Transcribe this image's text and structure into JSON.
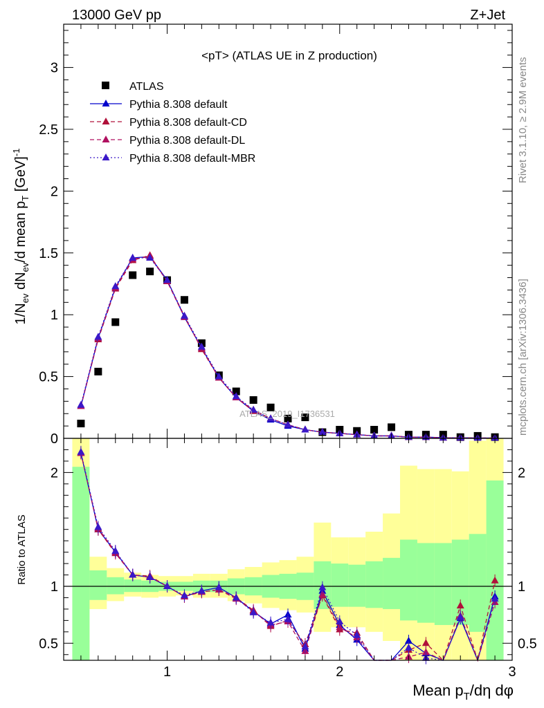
{
  "header": {
    "left": "13000 GeV pp",
    "right": "Z+Jet"
  },
  "side_labels": {
    "rivet": "Rivet 3.1.10, ≥ 2.9M events",
    "mcplots": "mcplots.cern.ch [arXiv:1306.3436]"
  },
  "watermark": "ATLAS_2019_I1736531",
  "colors": {
    "data": "#000000",
    "default": "#0000cc",
    "cd": "#b0103a",
    "dl": "#b01060",
    "mbr": "#3a18c8",
    "band_inner": "#99ff99",
    "band_outer": "#ffff99"
  },
  "chart_data": [
    {
      "type": "scatter",
      "panel": "main",
      "title": "<pT> (ATLAS UE in Z production)",
      "xlabel": "Mean p_T/dη dφ",
      "ylabel": "1/N_ev dN_ev/d mean p_T [GeV]^-1",
      "xlim": [
        0.4,
        3.0
      ],
      "ylim": [
        0,
        3.35
      ],
      "x_ticks": [
        "1",
        "2",
        "3"
      ],
      "y_ticks": [
        "0",
        "0.5",
        "1",
        "1.5",
        "2",
        "2.5",
        "3"
      ],
      "x": [
        0.5,
        0.6,
        0.7,
        0.8,
        0.9,
        1.0,
        1.1,
        1.2,
        1.3,
        1.4,
        1.5,
        1.6,
        1.7,
        1.8,
        1.9,
        2.0,
        2.1,
        2.2,
        2.3,
        2.4,
        2.5,
        2.6,
        2.7,
        2.8,
        2.9
      ],
      "series": [
        {
          "name": "ATLAS",
          "style": "data",
          "values": [
            0.12,
            0.54,
            0.94,
            1.32,
            1.35,
            1.28,
            1.12,
            0.77,
            0.51,
            0.38,
            0.31,
            0.25,
            0.16,
            0.17,
            0.05,
            0.07,
            0.06,
            0.07,
            0.09,
            0.03,
            0.03,
            0.03,
            0.01,
            0.02,
            0.01
          ]
        },
        {
          "name": "Pythia 8.308 default",
          "style": "solid",
          "color": "#0000cc",
          "values": [
            0.26,
            0.81,
            1.22,
            1.46,
            1.47,
            1.28,
            0.98,
            0.73,
            0.49,
            0.33,
            0.22,
            0.15,
            0.1,
            0.07,
            0.05,
            0.04,
            0.03,
            0.02,
            0.02,
            0.01,
            0.01,
            0.005,
            0.005,
            0.003,
            0.003
          ]
        },
        {
          "name": "Pythia 8.308 default-CD",
          "style": "dashed",
          "color": "#b0103a",
          "values": [
            0.26,
            0.8,
            1.21,
            1.44,
            1.48,
            1.27,
            0.99,
            0.72,
            0.49,
            0.33,
            0.22,
            0.16,
            0.11,
            0.07,
            0.05,
            0.04,
            0.03,
            0.02,
            0.02,
            0.01,
            0.01,
            0.005,
            0.005,
            0.003,
            0.003
          ]
        },
        {
          "name": "Pythia 8.308 default-DL",
          "style": "dashed",
          "color": "#b01060",
          "values": [
            0.26,
            0.81,
            1.22,
            1.45,
            1.47,
            1.27,
            0.98,
            0.73,
            0.49,
            0.33,
            0.23,
            0.16,
            0.11,
            0.07,
            0.05,
            0.04,
            0.03,
            0.02,
            0.02,
            0.01,
            0.01,
            0.005,
            0.005,
            0.003,
            0.003
          ]
        },
        {
          "name": "Pythia 8.308 default-MBR",
          "style": "dotted",
          "color": "#3a18c8",
          "values": [
            0.27,
            0.82,
            1.23,
            1.46,
            1.46,
            1.28,
            0.99,
            0.74,
            0.5,
            0.34,
            0.23,
            0.16,
            0.11,
            0.07,
            0.05,
            0.04,
            0.03,
            0.02,
            0.02,
            0.01,
            0.01,
            0.005,
            0.005,
            0.003,
            0.003
          ]
        }
      ]
    },
    {
      "type": "line",
      "panel": "ratio",
      "ylabel": "Ratio to ATLAS",
      "xlabel": "Mean p_T/dη dφ",
      "xlim": [
        0.4,
        3.0
      ],
      "ylim": [
        0.35,
        2.3
      ],
      "x_ticks": [
        "1",
        "2",
        "3"
      ],
      "y_ticks": [
        "0.5",
        "1",
        "2"
      ],
      "bin_edges": [
        0.45,
        0.55,
        0.65,
        0.75,
        0.85,
        0.95,
        1.05,
        1.15,
        1.25,
        1.35,
        1.45,
        1.55,
        1.65,
        1.75,
        1.85,
        1.95,
        2.05,
        2.15,
        2.25,
        2.35,
        2.45,
        2.55,
        2.65,
        2.75,
        2.85,
        2.95
      ],
      "band_inner_lo": [
        0.35,
        0.88,
        0.93,
        0.95,
        0.95,
        0.96,
        0.96,
        0.95,
        0.95,
        0.93,
        0.92,
        0.9,
        0.89,
        0.88,
        0.8,
        0.82,
        0.82,
        0.81,
        0.8,
        0.7,
        0.68,
        0.66,
        0.66,
        0.6,
        0.35
      ],
      "band_inner_hi": [
        2.05,
        1.14,
        1.08,
        1.06,
        1.05,
        1.04,
        1.04,
        1.05,
        1.05,
        1.07,
        1.08,
        1.1,
        1.11,
        1.12,
        1.22,
        1.2,
        1.19,
        1.22,
        1.25,
        1.41,
        1.38,
        1.38,
        1.41,
        1.46,
        1.93
      ],
      "band_outer_lo": [
        0.35,
        0.8,
        0.87,
        0.91,
        0.9,
        0.91,
        0.92,
        0.9,
        0.9,
        0.87,
        0.85,
        0.81,
        0.79,
        0.77,
        0.6,
        0.64,
        0.64,
        0.6,
        0.52,
        0.35,
        0.35,
        0.35,
        0.35,
        0.35,
        0.35
      ],
      "band_outer_hi": [
        2.3,
        1.26,
        1.16,
        1.12,
        1.1,
        1.09,
        1.09,
        1.11,
        1.11,
        1.15,
        1.17,
        1.21,
        1.23,
        1.26,
        1.56,
        1.43,
        1.43,
        1.48,
        1.64,
        2.06,
        2.03,
        2.03,
        2.01,
        2.28,
        2.3
      ],
      "x": [
        0.5,
        0.6,
        0.7,
        0.8,
        0.9,
        1.0,
        1.1,
        1.2,
        1.3,
        1.4,
        1.5,
        1.6,
        1.7,
        1.8,
        1.9,
        2.0,
        2.1,
        2.2,
        2.3,
        2.4,
        2.5,
        2.6,
        2.7,
        2.8,
        2.9
      ],
      "series": [
        {
          "name": "Pythia 8.308 default",
          "style": "solid",
          "color": "#0000cc",
          "values": [
            2.17,
            1.5,
            1.3,
            1.1,
            1.08,
            1.0,
            0.91,
            0.96,
            0.99,
            0.9,
            0.78,
            0.67,
            0.75,
            0.45,
            0.96,
            0.66,
            0.53,
            0.3,
            0.2,
            0.52,
            0.41,
            0.32,
            0.72,
            0.25,
            0.91
          ]
        },
        {
          "name": "Pythia 8.308 default-CD",
          "style": "dashed",
          "color": "#b0103a",
          "values": [
            2.17,
            1.5,
            1.29,
            1.1,
            1.09,
            1.0,
            0.91,
            0.95,
            0.97,
            0.9,
            0.79,
            0.65,
            0.7,
            0.49,
            0.92,
            0.62,
            0.59,
            0.3,
            0.2,
            0.44,
            0.5,
            0.33,
            0.83,
            0.25,
            1.05
          ]
        },
        {
          "name": "Pythia 8.308 default-DL",
          "style": "dashed",
          "color": "#b01060",
          "values": [
            2.17,
            1.51,
            1.3,
            1.1,
            1.08,
            1.0,
            0.91,
            0.95,
            0.97,
            0.89,
            0.78,
            0.66,
            0.69,
            0.43,
            0.93,
            0.64,
            0.55,
            0.3,
            0.2,
            0.38,
            0.42,
            0.3,
            0.74,
            0.25,
            0.86
          ]
        },
        {
          "name": "Pythia 8.308 default-MBR",
          "style": "dotted",
          "color": "#3a18c8",
          "values": [
            2.18,
            1.52,
            1.31,
            1.1,
            1.08,
            1.0,
            0.92,
            0.96,
            0.99,
            0.9,
            0.77,
            0.68,
            0.71,
            0.47,
            0.99,
            0.69,
            0.57,
            0.3,
            0.2,
            0.46,
            0.37,
            0.35,
            0.73,
            0.25,
            0.89
          ]
        }
      ]
    }
  ]
}
